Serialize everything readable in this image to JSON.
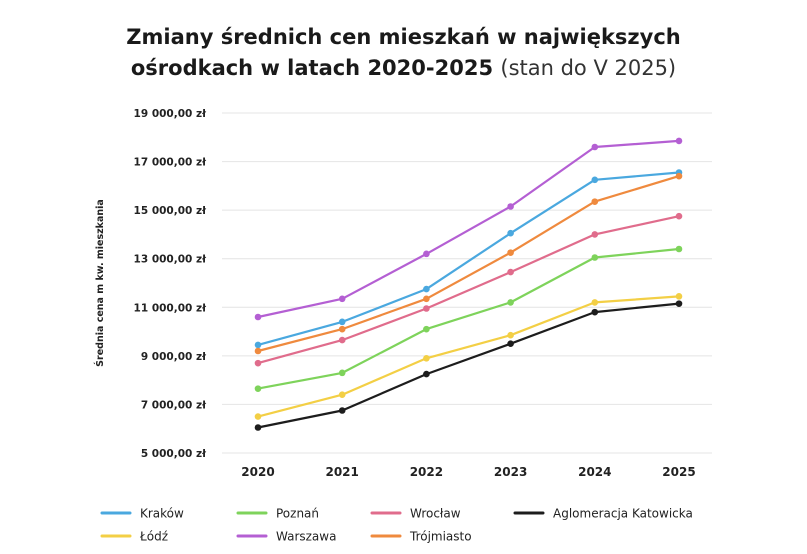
{
  "chart_data": {
    "type": "line",
    "title_line1": "Zmiany średnich cen mieszkań w największych",
    "title_line2_bold": "ośrodkach w latach 2020-2025",
    "title_line2_light": "(stan do V 2025)",
    "ylabel": "Średnia cena m kw. mieszkania",
    "xlabel": "",
    "ylim": [
      5000,
      19000
    ],
    "yticks": [
      5000,
      7000,
      9000,
      11000,
      13000,
      15000,
      17000,
      19000
    ],
    "ytick_labels": [
      "5 000,00 zł",
      "7 000,00 zł",
      "9 000,00 zł",
      "11 000,00 zł",
      "13 000,00 zł",
      "15 000,00 zł",
      "17 000,00 zł",
      "19 000,00 zł"
    ],
    "categories": [
      "2020",
      "2021",
      "2022",
      "2023",
      "2024",
      "2025"
    ],
    "grid": true,
    "legend_position": "bottom",
    "series": [
      {
        "name": "Kraków",
        "color": "#4aa8df",
        "values": [
          9450,
          10400,
          11750,
          14050,
          16250,
          16550
        ]
      },
      {
        "name": "Poznań",
        "color": "#7ed35b",
        "values": [
          7650,
          8300,
          10100,
          11200,
          13050,
          13400
        ]
      },
      {
        "name": "Wrocław",
        "color": "#e06c8c",
        "values": [
          8700,
          9650,
          10950,
          12450,
          14000,
          14750
        ]
      },
      {
        "name": "Aglomeracja Katowicka",
        "color": "#1d1d1d",
        "values": [
          6050,
          6750,
          8250,
          9500,
          10800,
          11150
        ]
      },
      {
        "name": "Łódź",
        "color": "#f3cf45",
        "values": [
          6500,
          7400,
          8900,
          9850,
          11200,
          11450
        ]
      },
      {
        "name": "Warszawa",
        "color": "#b45fd3",
        "values": [
          10600,
          11350,
          13200,
          15150,
          17600,
          17850
        ]
      },
      {
        "name": "Trójmiasto",
        "color": "#ef8a3e",
        "values": [
          9200,
          10100,
          11350,
          13250,
          15350,
          16400
        ]
      }
    ]
  }
}
